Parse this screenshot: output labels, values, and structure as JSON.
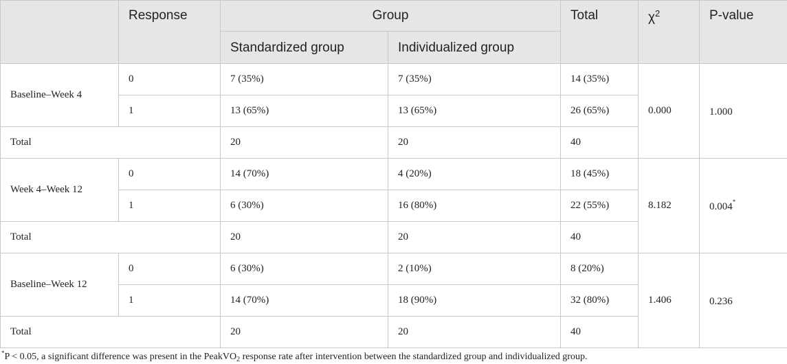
{
  "header": {
    "response": "Response",
    "group": "Group",
    "total": "Total",
    "chi_symbol": "χ",
    "chi_superscript": "2",
    "p_value": "P-value",
    "standardized_group": "Standardized group",
    "individualized_group": "Individualized group"
  },
  "sections": [
    {
      "period": "Baseline–Week 4",
      "rows": [
        {
          "response": "0",
          "standardized": "7 (35%)",
          "individualized": "7 (35%)",
          "total": "14 (35%)"
        },
        {
          "response": "1",
          "standardized": "13 (65%)",
          "individualized": "13 (65%)",
          "total": "26 (65%)"
        }
      ],
      "total_label": "Total",
      "totals": {
        "standardized": "20",
        "individualized": "20",
        "total": "40"
      },
      "chi2": "0.000",
      "p_value": "1.000",
      "p_marker": ""
    },
    {
      "period": "Week 4–Week 12",
      "rows": [
        {
          "response": "0",
          "standardized": "14 (70%)",
          "individualized": "4 (20%)",
          "total": "18 (45%)"
        },
        {
          "response": "1",
          "standardized": "6 (30%)",
          "individualized": "16 (80%)",
          "total": "22 (55%)"
        }
      ],
      "total_label": "Total",
      "totals": {
        "standardized": "20",
        "individualized": "20",
        "total": "40"
      },
      "chi2": "8.182",
      "p_value": "0.004",
      "p_marker": "*"
    },
    {
      "period": "Baseline–Week 12",
      "rows": [
        {
          "response": "0",
          "standardized": "6 (30%)",
          "individualized": "2 (10%)",
          "total": "8 (20%)"
        },
        {
          "response": "1",
          "standardized": "14 (70%)",
          "individualized": "18 (90%)",
          "total": "32 (80%)"
        }
      ],
      "total_label": "Total",
      "totals": {
        "standardized": "20",
        "individualized": "20",
        "total": "40"
      },
      "chi2": "1.406",
      "p_value": "0.236",
      "p_marker": ""
    }
  ],
  "footnote": {
    "marker": "*",
    "text_before": "P < 0.05, a significant difference was present in the PeakVO",
    "subscript": "2",
    "text_after": " response rate after intervention between the standardized group and individualized group."
  }
}
